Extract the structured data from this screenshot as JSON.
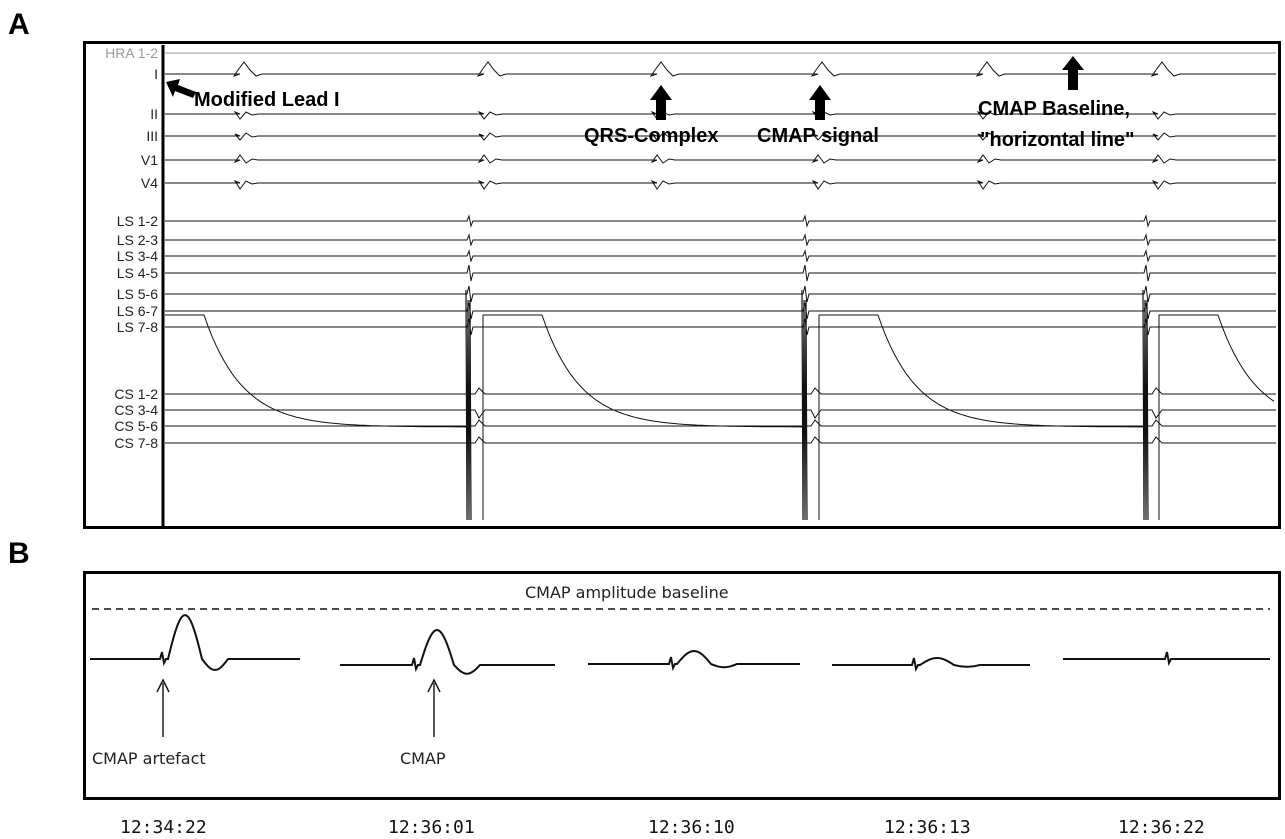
{
  "panel_a": {
    "letter": "A",
    "leads": [
      "HRA 1-2",
      "I",
      "II",
      "III",
      "V1",
      "V4",
      "LS 1-2",
      "LS 2-3",
      "LS 3-4",
      "LS 4-5",
      "LS 5-6",
      "LS 6-7",
      "LS 7-8",
      "CS 1-2",
      "CS 3-4",
      "CS 5-6",
      "CS 7-8"
    ],
    "annotations": {
      "modified_lead": "Modified Lead I",
      "qrs": "QRS-Complex",
      "cmap_signal": "CMAP signal",
      "baseline_line1": "CMAP Baseline,",
      "baseline_line2": "\"horizontal line\""
    }
  },
  "panel_b": {
    "letter": "B",
    "baseline_label": "CMAP amplitude baseline",
    "artefact_label": "CMAP artefact",
    "cmap_label": "CMAP",
    "timestamps": [
      "12:34:22",
      "12:36:01",
      "12:36:10",
      "12:36:13",
      "12:36:22"
    ]
  },
  "colors": {
    "trace": "#111111",
    "faded_label": "#9a9a9a"
  }
}
